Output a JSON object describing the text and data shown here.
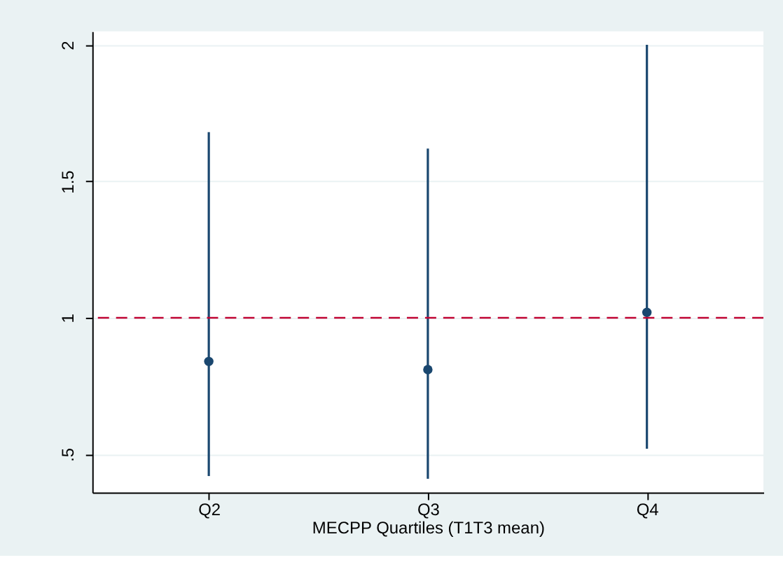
{
  "chart_data": {
    "type": "scatter",
    "xlabel": "MECPP Quartiles (T1T3 mean)",
    "categories": [
      "Q2",
      "Q3",
      "Q4"
    ],
    "series": [
      {
        "color": "#1a476f",
        "values": [
          0.84,
          0.81,
          1.02
        ],
        "errors": [
          [
            0.42,
            1.68
          ],
          [
            0.41,
            1.62
          ],
          [
            0.52,
            2.0
          ]
        ]
      }
    ],
    "ylim": [
      0.36,
      2.05
    ],
    "yticks": [
      {
        "value": 0.5,
        "label": ".5"
      },
      1,
      1.5,
      2
    ],
    "ref_lines": [
      {
        "axis": "y",
        "value": 1,
        "color": "#c10534",
        "line_style": "dashed"
      }
    ],
    "grid": "y",
    "marker": "circle"
  }
}
